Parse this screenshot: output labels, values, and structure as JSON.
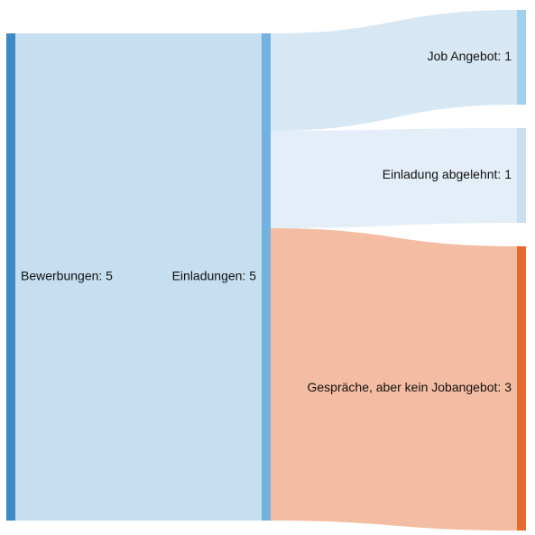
{
  "nodes": [
    {
      "id": "bewerbungen",
      "label": "Bewerbungen: 5",
      "value": 5,
      "color": "#3d8bc2"
    },
    {
      "id": "einladungen",
      "label": "Einladungen: 5",
      "value": 5,
      "color": "#73b2de"
    },
    {
      "id": "job_angebot",
      "label": "Job Angebot: 1",
      "value": 1,
      "color": "#a3d0ec"
    },
    {
      "id": "einladung_abgelehnt",
      "label": "Einladung abgelehnt: 1",
      "value": 1,
      "color": "#c9dff2"
    },
    {
      "id": "gespraeche_kein_jobangebot",
      "label": "Gespräche, aber kein Jobangebot: 3",
      "value": 3,
      "color": "#e8692c"
    }
  ],
  "links": [
    {
      "source": "bewerbungen",
      "target": "einladungen",
      "value": 5,
      "color": "#c5dff0"
    },
    {
      "source": "einladungen",
      "target": "job_angebot",
      "value": 1,
      "color": "#d7e8f4"
    },
    {
      "source": "einladungen",
      "target": "einladung_abgelehnt",
      "value": 1,
      "color": "#e4eef8"
    },
    {
      "source": "einladungen",
      "target": "gespraeche_kein_jobangebot",
      "value": 3,
      "color": "#f4bca2"
    }
  ]
}
